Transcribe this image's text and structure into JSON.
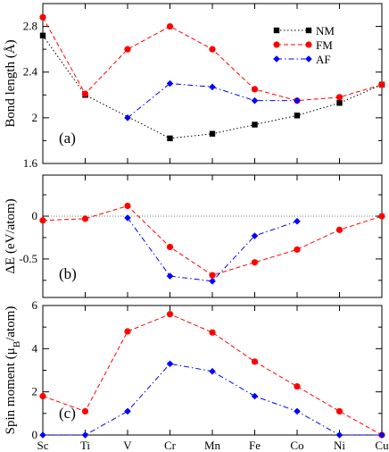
{
  "chart_data": [
    {
      "type": "line",
      "panel_label": "(a)",
      "ylabel": "Bond length (Å)",
      "categories": [
        "Sc",
        "Ti",
        "V",
        "Cr",
        "Mn",
        "Fe",
        "Co",
        "Ni",
        "Cu"
      ],
      "ylim": [
        1.6,
        3.0
      ],
      "yticks": [
        1.6,
        2,
        2.4,
        2.8
      ],
      "ytick_labels": [
        "1.6",
        "2",
        "2.4",
        "2.8"
      ],
      "legend": {
        "placement": "top-right",
        "entries": [
          "NM",
          "FM",
          "AF"
        ]
      },
      "series": [
        {
          "name": "NM",
          "color": "#000000",
          "style": "dotted",
          "marker": "square",
          "values": [
            2.72,
            2.2,
            null,
            1.82,
            1.86,
            1.94,
            2.02,
            2.13,
            2.29
          ]
        },
        {
          "name": "FM",
          "color": "#ff0000",
          "style": "dashed",
          "marker": "circle",
          "values": [
            2.88,
            2.21,
            2.6,
            2.8,
            2.6,
            2.25,
            2.15,
            2.18,
            2.29
          ]
        },
        {
          "name": "AF",
          "color": "#0000ff",
          "style": "dashdot",
          "marker": "diamond",
          "values": [
            null,
            null,
            2.0,
            2.3,
            2.27,
            2.15,
            2.15,
            null,
            null
          ]
        }
      ]
    },
    {
      "type": "line",
      "panel_label": "(b)",
      "ylabel": "ΔE (eV/atom)",
      "categories": [
        "Sc",
        "Ti",
        "V",
        "Cr",
        "Mn",
        "Fe",
        "Co",
        "Ni",
        "Cu"
      ],
      "ylim": [
        -0.95,
        0.48
      ],
      "yticks": [
        -0.5,
        0
      ],
      "ytick_labels": [
        "-0.5",
        "0"
      ],
      "reference_line": 0,
      "series": [
        {
          "name": "FM",
          "color": "#ff0000",
          "style": "dashed",
          "marker": "circle",
          "values": [
            -0.05,
            -0.03,
            0.12,
            -0.36,
            -0.69,
            -0.54,
            -0.39,
            -0.16,
            0.0
          ]
        },
        {
          "name": "AF",
          "color": "#0000ff",
          "style": "dashdot",
          "marker": "diamond",
          "values": [
            null,
            null,
            -0.02,
            -0.7,
            -0.76,
            -0.23,
            -0.06,
            null,
            null
          ]
        }
      ]
    },
    {
      "type": "line",
      "panel_label": "(c)",
      "ylabel_main": "Spin moment (μ",
      "ylabel_sub": "B",
      "ylabel_tail": "/atom)",
      "categories": [
        "Sc",
        "Ti",
        "V",
        "Cr",
        "Mn",
        "Fe",
        "Co",
        "Ni",
        "Cu"
      ],
      "ylim": [
        0,
        6
      ],
      "yticks": [
        0,
        2,
        4,
        6
      ],
      "ytick_labels": [
        "0",
        "2",
        "4",
        "6"
      ],
      "series": [
        {
          "name": "FM",
          "color": "#ff0000",
          "style": "dashed",
          "marker": "circle",
          "values": [
            1.8,
            1.1,
            4.8,
            5.6,
            4.75,
            3.4,
            2.25,
            1.1,
            0.0
          ]
        },
        {
          "name": "AF",
          "color": "#0000ff",
          "style": "dashdot",
          "marker": "diamond",
          "values": [
            0.0,
            0.0,
            1.1,
            3.3,
            2.95,
            1.8,
            1.1,
            0.0,
            0.0
          ]
        }
      ]
    }
  ]
}
